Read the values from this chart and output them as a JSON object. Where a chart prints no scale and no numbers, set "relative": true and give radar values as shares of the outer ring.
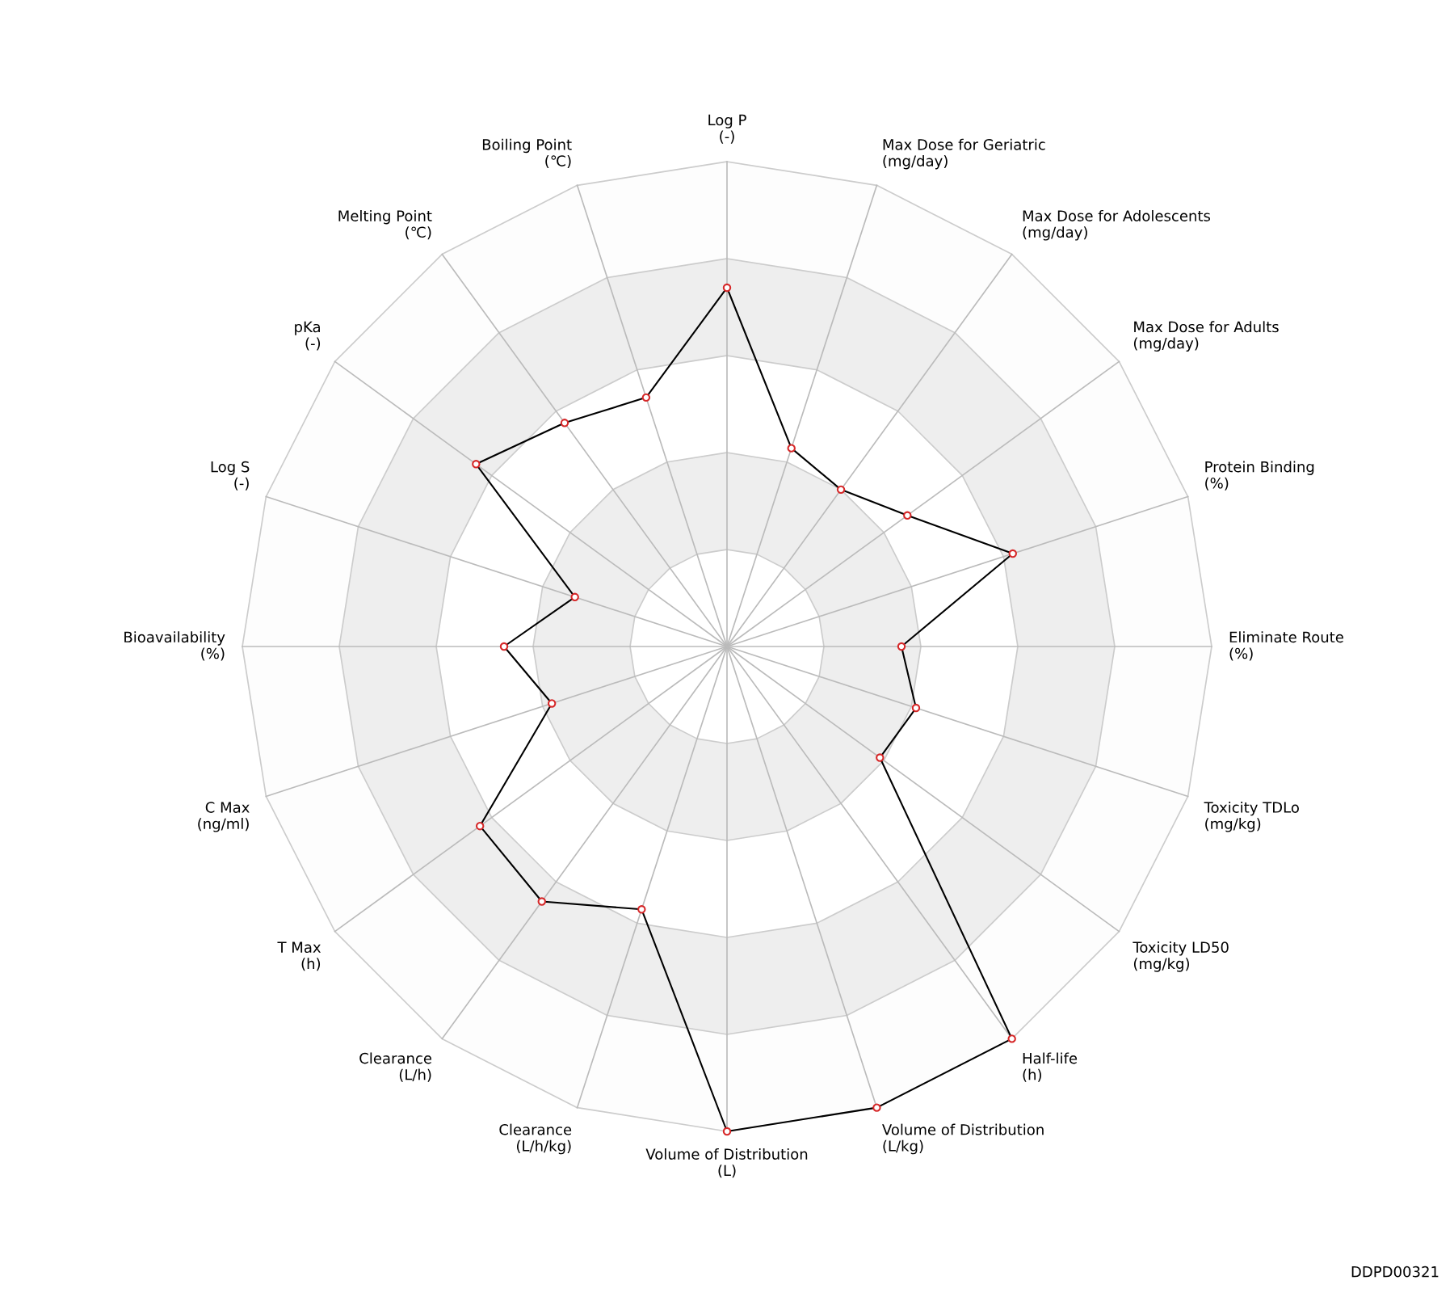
{
  "chart_data": {
    "type": "radar",
    "relative": true,
    "grid": true,
    "marker": "circle",
    "line_style": "solid",
    "categories": [
      "Log P\n(-)",
      "Max Dose for Geriatric\n(mg/day)",
      "Max Dose for Adolescents\n(mg/day)",
      "Max Dose for Adults\n(mg/day)",
      "Protein Binding\n(%)",
      "Eliminate Route\n(%)",
      "Toxicity TDLo\n(mg/kg)",
      "Toxicity LD50\n(mg/kg)",
      "Half-life\n(h)",
      "Volume of Distribution\n(L/kg)",
      "Volume of Distribution\n(L)",
      "Clearance\n(L/h/kg)",
      "Clearance\n(L/h)",
      "T Max\n(h)",
      "C Max\n(ng/ml)",
      "Bioavailability\n(%)",
      "Log S\n(-)",
      "pKa\n(-)",
      "Melting Point\n(℃)",
      "Boiling Point\n(℃)"
    ],
    "series": [
      {
        "color": "#000000",
        "values": [
          0.74,
          0.43,
          0.4,
          0.46,
          0.62,
          0.36,
          0.41,
          0.39,
          1.0,
          1.0,
          1.0,
          0.57,
          0.65,
          0.63,
          0.38,
          0.46,
          0.33,
          0.64,
          0.57,
          0.54
        ]
      }
    ],
    "annotations": [
      "DDPD00321"
    ]
  }
}
